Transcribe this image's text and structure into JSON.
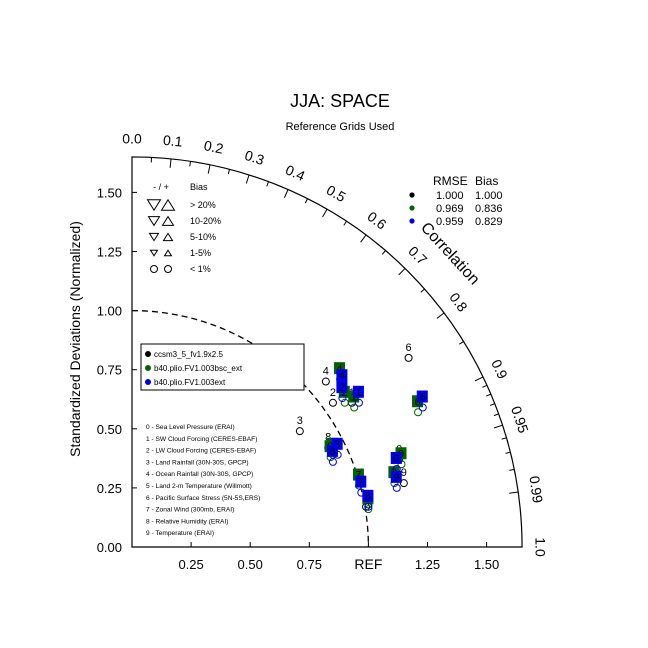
{
  "title": "JJA: SPACE",
  "subtitle": "Reference Grids Used",
  "chart_data": {
    "type": "scatter",
    "diagram": "taylor",
    "ylabel": "Standardized Deviations (Normalized)",
    "arc_label": "Correlation",
    "ref_label": "REF",
    "std_ticks": [
      {
        "v": 0.25,
        "label": "0.25"
      },
      {
        "v": 0.5,
        "label": "0.50"
      },
      {
        "v": 0.75,
        "label": "0.75"
      },
      {
        "v": 1.0,
        "label": "1.00"
      },
      {
        "v": 1.25,
        "label": "1.25"
      },
      {
        "v": 1.5,
        "label": "1.50"
      }
    ],
    "x_ticks": [
      {
        "v": 0.0,
        "label": "0.00"
      },
      {
        "v": 0.25,
        "label": "0.25"
      },
      {
        "v": 0.5,
        "label": "0.50"
      },
      {
        "v": 0.75,
        "label": "0.75"
      },
      {
        "v": 1.25,
        "label": "1.25"
      },
      {
        "v": 1.5,
        "label": "1.50"
      }
    ],
    "outer_radius": 1.65,
    "corr_ticks": [
      {
        "c": 0.0,
        "label": "0.0"
      },
      {
        "c": 0.1,
        "label": "0.1"
      },
      {
        "c": 0.2,
        "label": "0.2"
      },
      {
        "c": 0.3,
        "label": "0.3"
      },
      {
        "c": 0.4,
        "label": "0.4"
      },
      {
        "c": 0.5,
        "label": "0.5"
      },
      {
        "c": 0.6,
        "label": "0.6"
      },
      {
        "c": 0.7,
        "label": "0.7"
      },
      {
        "c": 0.8,
        "label": "0.8"
      },
      {
        "c": 0.9,
        "label": "0.9"
      },
      {
        "c": 0.95,
        "label": "0.95"
      },
      {
        "c": 0.99,
        "label": "0.99"
      },
      {
        "c": 1.0,
        "label": "1.0"
      }
    ],
    "minor_corr_ticks": [
      0.05,
      0.15,
      0.25,
      0.35,
      0.45,
      0.55,
      0.65,
      0.75,
      0.85,
      0.91,
      0.92,
      0.93,
      0.94,
      0.96,
      0.97,
      0.98
    ],
    "series": [
      {
        "name": "ccsm3_5_fv1.9x2.5",
        "color": "#000000",
        "rmse": "1.000",
        "bias": "1.000",
        "points": [
          {
            "id": "0",
            "x": 1.13,
            "y": 0.37
          },
          {
            "id": "1",
            "x": 0.93,
            "y": 0.61
          },
          {
            "id": "2",
            "x": 0.85,
            "y": 0.61
          },
          {
            "id": "3",
            "x": 0.71,
            "y": 0.49
          },
          {
            "id": "4",
            "x": 0.82,
            "y": 0.7
          },
          {
            "id": "5",
            "x": 1.0,
            "y": 0.18
          },
          {
            "id": "6",
            "x": 1.17,
            "y": 0.8
          },
          {
            "id": "7",
            "x": 0.99,
            "y": 0.17
          },
          {
            "id": "8",
            "x": 0.83,
            "y": 0.42
          },
          {
            "id": "9",
            "x": 1.15,
            "y": 0.27
          }
        ]
      },
      {
        "name": "b40.plio.FV1.003bsc_ext",
        "color": "#006400",
        "rmse": "0.969",
        "bias": "0.836",
        "points": [
          {
            "id": "0",
            "x": 1.14,
            "y": 0.35
          },
          {
            "id": "1",
            "x": 0.94,
            "y": 0.59
          },
          {
            "id": "2",
            "x": 0.9,
            "y": 0.61
          },
          {
            "id": "3",
            "x": 0.85,
            "y": 0.39
          },
          {
            "id": "4",
            "x": 0.88,
            "y": 0.71
          },
          {
            "id": "5",
            "x": 1.0,
            "y": 0.16
          },
          {
            "id": "6",
            "x": 1.21,
            "y": 0.57
          },
          {
            "id": "7",
            "x": 0.96,
            "y": 0.26
          },
          {
            "id": "8",
            "x": 0.84,
            "y": 0.38
          },
          {
            "id": "9",
            "x": 1.11,
            "y": 0.27
          }
        ]
      },
      {
        "name": "b40.plio.FV1.003ext",
        "color": "#0000ee",
        "rmse": "0.959",
        "bias": "0.829",
        "points": [
          {
            "id": "0",
            "x": 1.12,
            "y": 0.33
          },
          {
            "id": "1",
            "x": 0.96,
            "y": 0.61
          },
          {
            "id": "2",
            "x": 0.89,
            "y": 0.63
          },
          {
            "id": "3",
            "x": 0.87,
            "y": 0.39
          },
          {
            "id": "4",
            "x": 0.89,
            "y": 0.68
          },
          {
            "id": "5",
            "x": 1.0,
            "y": 0.17
          },
          {
            "id": "6",
            "x": 1.23,
            "y": 0.59
          },
          {
            "id": "7",
            "x": 0.97,
            "y": 0.23
          },
          {
            "id": "8",
            "x": 0.85,
            "y": 0.36
          },
          {
            "id": "9",
            "x": 1.12,
            "y": 0.25
          }
        ]
      }
    ],
    "bias_legend": {
      "header": "- / +",
      "header_bias": "Bias",
      "rows": [
        "> 20%",
        "10-20%",
        "5-10%",
        "1-5%",
        "< 1%"
      ]
    },
    "variables": [
      "0 - Sea Level Pressure (ERAI)",
      "1 - SW Cloud Forcing (CERES-EBAF)",
      "2 - LW Cloud Forcing (CERES-EBAF)",
      "3 - Land Rainfall (30N-30S, GPCP)",
      "4 - Ocean Rainfall (30N-30S, GPCP)",
      "5 - Land 2-m Temperature (Willmott)",
      "6 - Pacific Surface Stress (5N-5S,ERS)",
      "7 - Zonal Wind (300mb, ERAI)",
      "8 - Relative Humidity (ERAI)",
      "9 - Temperature (ERAI)"
    ],
    "stats_header": {
      "rmse": "RMSE",
      "bias": "Bias"
    }
  }
}
